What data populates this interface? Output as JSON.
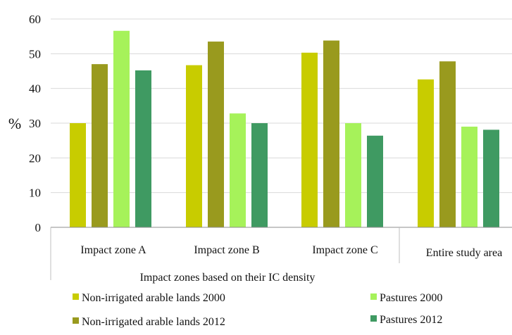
{
  "chart_data": {
    "type": "bar",
    "ylabel": "%",
    "xlabel": "Impact zones based on their IC density",
    "ylim": [
      0,
      60
    ],
    "yticks": [
      0,
      10,
      20,
      30,
      40,
      50,
      60
    ],
    "grid": true,
    "legend_position": "bottom",
    "categories": [
      "Impact zone A",
      "Impact zone B",
      "Impact zone C",
      "Entire study area"
    ],
    "series": [
      {
        "name": "Non-irrigated arable lands 2000",
        "color": "#c8cc00",
        "values": [
          30,
          46.7,
          50.3,
          42.6
        ]
      },
      {
        "name": "Non-irrigated arable lands 2012",
        "color": "#999a1e",
        "values": [
          47,
          53.5,
          53.8,
          47.8
        ]
      },
      {
        "name": "Pastures 2000",
        "color": "#a6f25a",
        "values": [
          56.6,
          32.8,
          30,
          29
        ]
      },
      {
        "name": "Pastures 2012",
        "color": "#3f9a62",
        "values": [
          45.2,
          30,
          26.4,
          28.1
        ]
      }
    ]
  }
}
